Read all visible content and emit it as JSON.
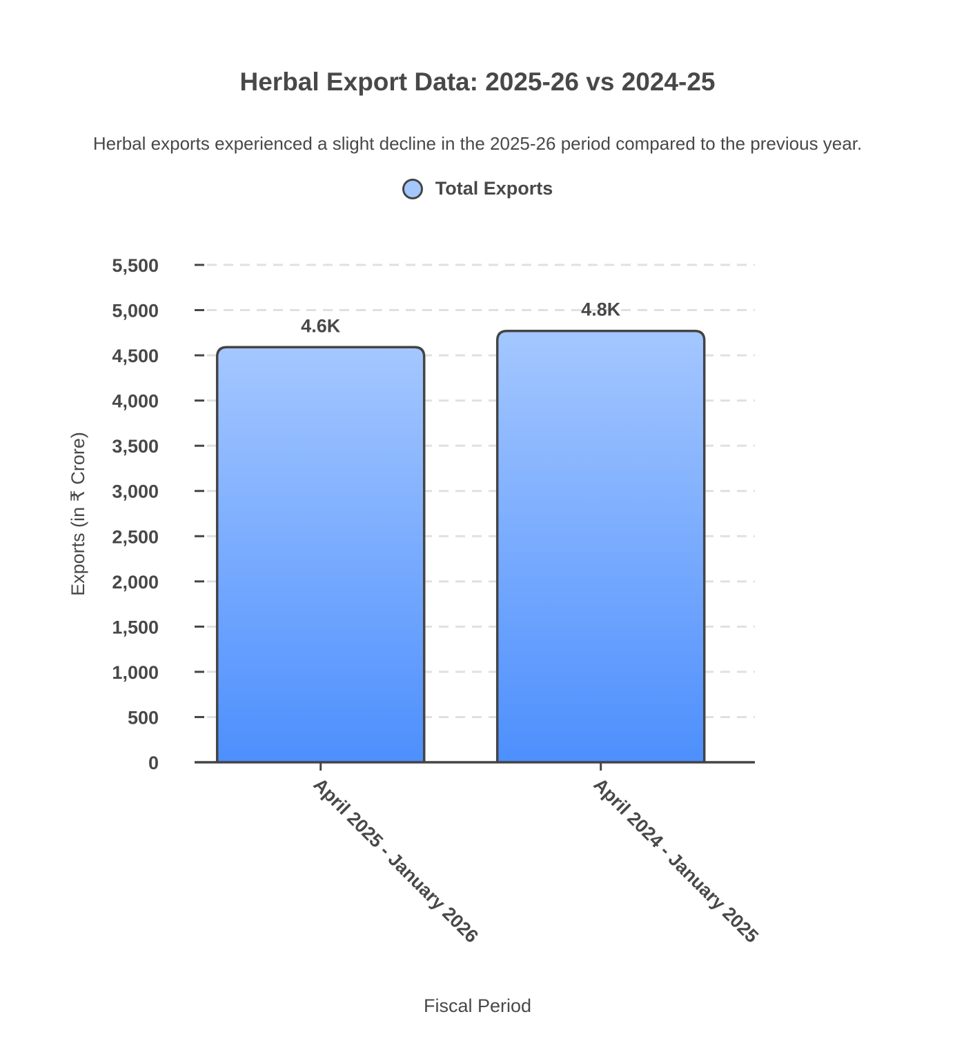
{
  "chart_data": {
    "type": "bar",
    "title": "Herbal Export Data: 2025-26 vs 2024-25",
    "subtitle": "Herbal exports experienced a slight decline in the 2025-26 period compared to the previous year.",
    "xlabel": "Fiscal Period",
    "ylabel": "Exports (in ₹ Crore)",
    "categories": [
      "April 2025 - January 2026",
      "April 2024 - January 2025"
    ],
    "series": [
      {
        "name": "Total Exports",
        "values": [
          4590,
          4770
        ],
        "labels": [
          "4.6K",
          "4.8K"
        ]
      }
    ],
    "ylim": [
      0,
      5500
    ],
    "yticks": [
      0,
      500,
      1000,
      1500,
      2000,
      2500,
      3000,
      3500,
      4000,
      4500,
      5000,
      5500
    ],
    "ytick_labels": [
      "0",
      "500",
      "1,000",
      "1,500",
      "2,000",
      "2,500",
      "3,000",
      "3,500",
      "4,000",
      "4,500",
      "5,000",
      "5,500"
    ],
    "grid": true,
    "legend": "top-center",
    "colors": {
      "bar_top": "#a4c7ff",
      "bar_bottom": "#4d8ffd",
      "outline": "#444444",
      "grid": "#e0e0e0"
    }
  }
}
